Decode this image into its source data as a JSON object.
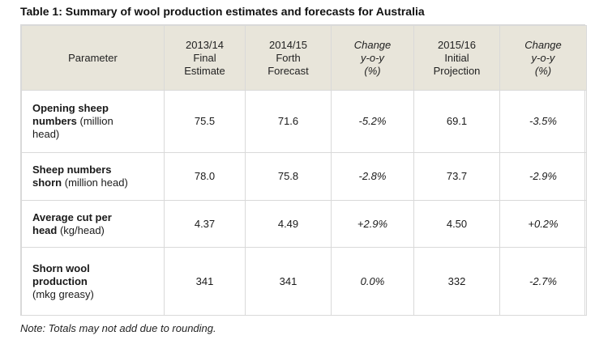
{
  "title": "Table 1: Summary of wool production estimates and forecasts for Australia",
  "headers": {
    "parameter": "Parameter",
    "col1": [
      "2013/14",
      "Final",
      "Estimate"
    ],
    "col2": [
      "2014/15",
      "Forth",
      "Forecast"
    ],
    "col3": [
      "Change",
      "y-o-y",
      "(%)"
    ],
    "col4": [
      "2015/16",
      "Initial",
      "Projection"
    ],
    "col5": [
      "Change",
      "y-o-y",
      "(%)"
    ]
  },
  "rows": [
    {
      "param_bold": [
        "Opening sheep",
        "numbers"
      ],
      "param_rest": [
        " (million",
        "head)"
      ],
      "values": [
        "75.5",
        "71.6",
        "-5.2%",
        "69.1",
        "-3.5%"
      ]
    },
    {
      "param_bold": [
        "Sheep numbers",
        "shorn"
      ],
      "param_rest": [
        " (million head)"
      ],
      "values": [
        "78.0",
        "75.8",
        "-2.8%",
        "73.7",
        "-2.9%"
      ]
    },
    {
      "param_bold": [
        "Average cut per",
        "head"
      ],
      "param_rest": [
        " (kg/head)"
      ],
      "values": [
        "4.37",
        "4.49",
        "+2.9%",
        "4.50",
        "+0.2%"
      ]
    },
    {
      "param_bold": [
        "Shorn wool",
        "production"
      ],
      "param_rest": [
        "(mkg greasy)"
      ],
      "values": [
        "341",
        "341",
        "0.0%",
        "332",
        "-2.7%"
      ]
    }
  ],
  "note": "Note: Totals may not add due to rounding."
}
